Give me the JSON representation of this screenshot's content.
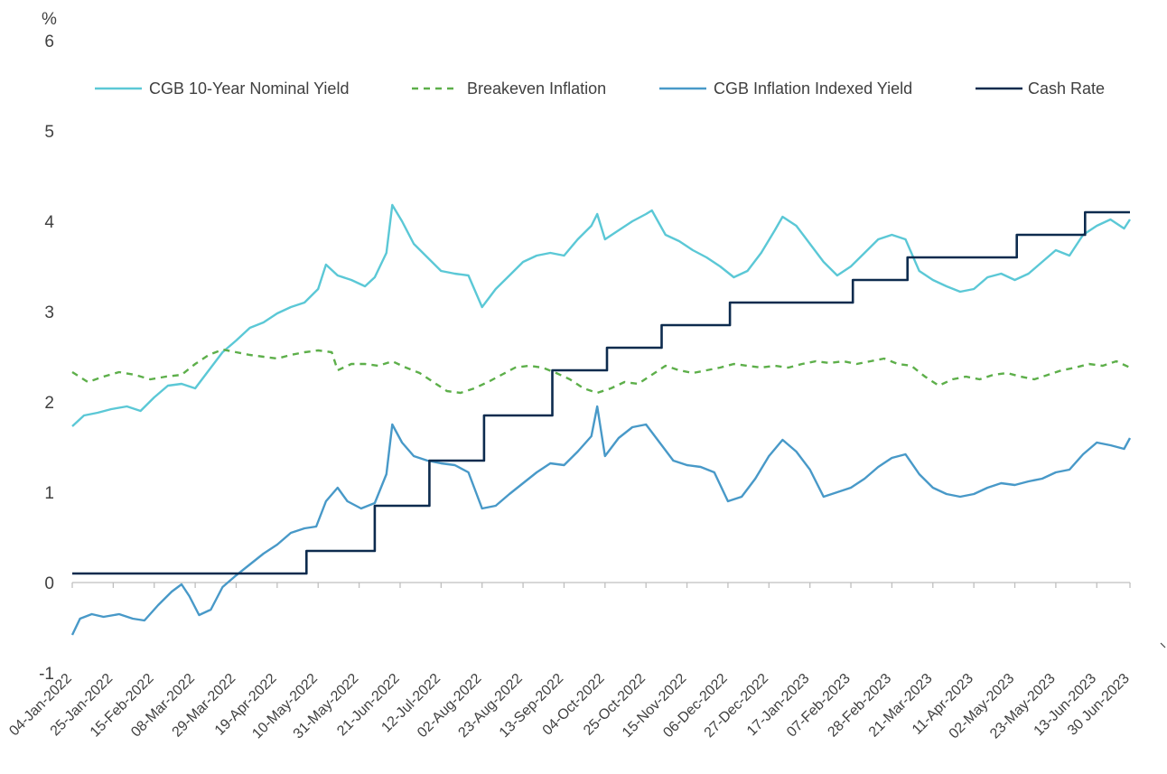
{
  "chart_data": {
    "type": "line",
    "ylabel": "%",
    "ylim": [
      -1,
      6
    ],
    "yticks": [
      "-1",
      "0",
      "1",
      "2",
      "3",
      "4",
      "5",
      "6"
    ],
    "xlim": [
      "2022-01-04",
      "2023-06-30"
    ],
    "grid": false,
    "legend_position": "top",
    "xtick_labels": [
      "04-Jan-2022",
      "25-Jan-2022",
      "15-Feb-2022",
      "08-Mar-2022",
      "29-Mar-2022",
      "19-Apr-2022",
      "10-May-2022",
      "31-May-2022",
      "21-Jun-2022",
      "12-Jul-2022",
      "02-Aug-2022",
      "23-Aug-2022",
      "13-Sep-2022",
      "04-Oct-2022",
      "25-Oct-2022",
      "15-Nov-2022",
      "06-Dec-2022",
      "27-Dec-2022",
      "17-Jan-2023",
      "07-Feb-2023",
      "28-Feb-2023",
      "21-Mar-2023",
      "11-Apr-2023",
      "02-May-2023",
      "23-May-2023",
      "13-Jun-2023",
      "30 Jun-2023"
    ],
    "xtick_dates": [
      "2022-01-04",
      "2022-01-25",
      "2022-02-15",
      "2022-03-08",
      "2022-03-29",
      "2022-04-19",
      "2022-05-10",
      "2022-05-31",
      "2022-06-21",
      "2022-07-12",
      "2022-08-02",
      "2022-08-23",
      "2022-09-13",
      "2022-10-04",
      "2022-10-25",
      "2022-11-15",
      "2022-12-06",
      "2022-12-27",
      "2023-01-17",
      "2023-02-07",
      "2023-02-28",
      "2023-03-21",
      "2023-04-11",
      "2023-05-02",
      "2023-05-23",
      "2023-06-13",
      "2023-06-30"
    ],
    "series": [
      {
        "name": "CGB 10-Year Nominal Yield",
        "color": "#5BC8D6",
        "style": "solid",
        "points": [
          [
            "2022-01-04",
            1.73
          ],
          [
            "2022-01-10",
            1.85
          ],
          [
            "2022-01-17",
            1.88
          ],
          [
            "2022-01-24",
            1.92
          ],
          [
            "2022-02-01",
            1.95
          ],
          [
            "2022-02-08",
            1.9
          ],
          [
            "2022-02-15",
            2.05
          ],
          [
            "2022-02-22",
            2.18
          ],
          [
            "2022-03-01",
            2.2
          ],
          [
            "2022-03-08",
            2.15
          ],
          [
            "2022-03-15",
            2.35
          ],
          [
            "2022-03-22",
            2.55
          ],
          [
            "2022-03-29",
            2.68
          ],
          [
            "2022-04-05",
            2.82
          ],
          [
            "2022-04-12",
            2.88
          ],
          [
            "2022-04-19",
            2.98
          ],
          [
            "2022-04-26",
            3.05
          ],
          [
            "2022-05-03",
            3.1
          ],
          [
            "2022-05-10",
            3.25
          ],
          [
            "2022-05-14",
            3.52
          ],
          [
            "2022-05-20",
            3.4
          ],
          [
            "2022-05-27",
            3.35
          ],
          [
            "2022-06-03",
            3.28
          ],
          [
            "2022-06-08",
            3.38
          ],
          [
            "2022-06-14",
            3.65
          ],
          [
            "2022-06-17",
            4.18
          ],
          [
            "2022-06-22",
            4.0
          ],
          [
            "2022-06-28",
            3.75
          ],
          [
            "2022-07-05",
            3.6
          ],
          [
            "2022-07-12",
            3.45
          ],
          [
            "2022-07-19",
            3.42
          ],
          [
            "2022-07-26",
            3.4
          ],
          [
            "2022-08-02",
            3.05
          ],
          [
            "2022-08-09",
            3.25
          ],
          [
            "2022-08-16",
            3.4
          ],
          [
            "2022-08-23",
            3.55
          ],
          [
            "2022-08-30",
            3.62
          ],
          [
            "2022-09-06",
            3.65
          ],
          [
            "2022-09-13",
            3.62
          ],
          [
            "2022-09-20",
            3.8
          ],
          [
            "2022-09-27",
            3.95
          ],
          [
            "2022-09-30",
            4.08
          ],
          [
            "2022-10-04",
            3.8
          ],
          [
            "2022-10-11",
            3.9
          ],
          [
            "2022-10-18",
            4.0
          ],
          [
            "2022-10-25",
            4.08
          ],
          [
            "2022-10-28",
            4.12
          ],
          [
            "2022-11-04",
            3.85
          ],
          [
            "2022-11-11",
            3.78
          ],
          [
            "2022-11-18",
            3.68
          ],
          [
            "2022-11-25",
            3.6
          ],
          [
            "2022-12-02",
            3.5
          ],
          [
            "2022-12-09",
            3.38
          ],
          [
            "2022-12-16",
            3.45
          ],
          [
            "2022-12-23",
            3.65
          ],
          [
            "2022-12-30",
            3.9
          ],
          [
            "2023-01-03",
            4.05
          ],
          [
            "2023-01-10",
            3.95
          ],
          [
            "2023-01-17",
            3.75
          ],
          [
            "2023-01-24",
            3.55
          ],
          [
            "2023-01-31",
            3.4
          ],
          [
            "2023-02-07",
            3.5
          ],
          [
            "2023-02-14",
            3.65
          ],
          [
            "2023-02-21",
            3.8
          ],
          [
            "2023-02-28",
            3.85
          ],
          [
            "2023-03-07",
            3.8
          ],
          [
            "2023-03-14",
            3.45
          ],
          [
            "2023-03-21",
            3.35
          ],
          [
            "2023-03-28",
            3.28
          ],
          [
            "2023-04-04",
            3.22
          ],
          [
            "2023-04-11",
            3.25
          ],
          [
            "2023-04-18",
            3.38
          ],
          [
            "2023-04-25",
            3.42
          ],
          [
            "2023-05-02",
            3.35
          ],
          [
            "2023-05-09",
            3.42
          ],
          [
            "2023-05-16",
            3.55
          ],
          [
            "2023-05-23",
            3.68
          ],
          [
            "2023-05-30",
            3.62
          ],
          [
            "2023-06-06",
            3.85
          ],
          [
            "2023-06-13",
            3.95
          ],
          [
            "2023-06-20",
            4.02
          ],
          [
            "2023-06-27",
            3.92
          ],
          [
            "2023-06-30",
            4.02
          ]
        ]
      },
      {
        "name": "Breakeven Inflation",
        "color": "#5DAF4A",
        "style": "dashed",
        "points": [
          [
            "2022-01-04",
            2.33
          ],
          [
            "2022-01-12",
            2.22
          ],
          [
            "2022-01-20",
            2.28
          ],
          [
            "2022-01-28",
            2.33
          ],
          [
            "2022-02-05",
            2.3
          ],
          [
            "2022-02-13",
            2.25
          ],
          [
            "2022-02-21",
            2.28
          ],
          [
            "2022-03-01",
            2.3
          ],
          [
            "2022-03-08",
            2.42
          ],
          [
            "2022-03-15",
            2.52
          ],
          [
            "2022-03-22",
            2.58
          ],
          [
            "2022-03-29",
            2.55
          ],
          [
            "2022-04-05",
            2.52
          ],
          [
            "2022-04-12",
            2.5
          ],
          [
            "2022-04-19",
            2.48
          ],
          [
            "2022-04-26",
            2.52
          ],
          [
            "2022-05-03",
            2.55
          ],
          [
            "2022-05-10",
            2.57
          ],
          [
            "2022-05-17",
            2.55
          ],
          [
            "2022-05-20",
            2.35
          ],
          [
            "2022-05-27",
            2.42
          ],
          [
            "2022-06-03",
            2.42
          ],
          [
            "2022-06-10",
            2.4
          ],
          [
            "2022-06-17",
            2.45
          ],
          [
            "2022-06-24",
            2.38
          ],
          [
            "2022-07-01",
            2.32
          ],
          [
            "2022-07-08",
            2.22
          ],
          [
            "2022-07-15",
            2.12
          ],
          [
            "2022-07-22",
            2.1
          ],
          [
            "2022-07-29",
            2.15
          ],
          [
            "2022-08-05",
            2.22
          ],
          [
            "2022-08-12",
            2.3
          ],
          [
            "2022-08-19",
            2.38
          ],
          [
            "2022-08-26",
            2.4
          ],
          [
            "2022-09-02",
            2.38
          ],
          [
            "2022-09-09",
            2.32
          ],
          [
            "2022-09-16",
            2.25
          ],
          [
            "2022-09-23",
            2.15
          ],
          [
            "2022-09-30",
            2.1
          ],
          [
            "2022-10-07",
            2.15
          ],
          [
            "2022-10-14",
            2.22
          ],
          [
            "2022-10-21",
            2.2
          ],
          [
            "2022-10-28",
            2.3
          ],
          [
            "2022-11-04",
            2.4
          ],
          [
            "2022-11-11",
            2.35
          ],
          [
            "2022-11-18",
            2.32
          ],
          [
            "2022-11-25",
            2.35
          ],
          [
            "2022-12-02",
            2.38
          ],
          [
            "2022-12-09",
            2.42
          ],
          [
            "2022-12-16",
            2.4
          ],
          [
            "2022-12-23",
            2.38
          ],
          [
            "2022-12-30",
            2.4
          ],
          [
            "2023-01-06",
            2.38
          ],
          [
            "2023-01-13",
            2.42
          ],
          [
            "2023-01-20",
            2.45
          ],
          [
            "2023-01-27",
            2.43
          ],
          [
            "2023-02-03",
            2.45
          ],
          [
            "2023-02-10",
            2.42
          ],
          [
            "2023-02-17",
            2.45
          ],
          [
            "2023-02-24",
            2.48
          ],
          [
            "2023-03-03",
            2.42
          ],
          [
            "2023-03-10",
            2.4
          ],
          [
            "2023-03-17",
            2.28
          ],
          [
            "2023-03-24",
            2.18
          ],
          [
            "2023-03-31",
            2.25
          ],
          [
            "2023-04-07",
            2.28
          ],
          [
            "2023-04-14",
            2.25
          ],
          [
            "2023-04-21",
            2.3
          ],
          [
            "2023-04-28",
            2.32
          ],
          [
            "2023-05-05",
            2.28
          ],
          [
            "2023-05-12",
            2.25
          ],
          [
            "2023-05-19",
            2.3
          ],
          [
            "2023-05-26",
            2.35
          ],
          [
            "2023-06-02",
            2.38
          ],
          [
            "2023-06-09",
            2.42
          ],
          [
            "2023-06-16",
            2.4
          ],
          [
            "2023-06-23",
            2.45
          ],
          [
            "2023-06-30",
            2.38
          ]
        ]
      },
      {
        "name": "CGB Inflation Indexed Yield",
        "color": "#4899C8",
        "style": "solid",
        "points": [
          [
            "2022-01-04",
            -0.58
          ],
          [
            "2022-01-08",
            -0.4
          ],
          [
            "2022-01-14",
            -0.35
          ],
          [
            "2022-01-20",
            -0.38
          ],
          [
            "2022-01-28",
            -0.35
          ],
          [
            "2022-02-04",
            -0.4
          ],
          [
            "2022-02-10",
            -0.42
          ],
          [
            "2022-02-17",
            -0.25
          ],
          [
            "2022-02-24",
            -0.1
          ],
          [
            "2022-03-01",
            -0.02
          ],
          [
            "2022-03-05",
            -0.15
          ],
          [
            "2022-03-10",
            -0.36
          ],
          [
            "2022-03-16",
            -0.3
          ],
          [
            "2022-03-22",
            -0.05
          ],
          [
            "2022-03-29",
            0.08
          ],
          [
            "2022-04-05",
            0.2
          ],
          [
            "2022-04-12",
            0.32
          ],
          [
            "2022-04-19",
            0.42
          ],
          [
            "2022-04-26",
            0.55
          ],
          [
            "2022-05-03",
            0.6
          ],
          [
            "2022-05-09",
            0.62
          ],
          [
            "2022-05-14",
            0.9
          ],
          [
            "2022-05-20",
            1.05
          ],
          [
            "2022-05-25",
            0.9
          ],
          [
            "2022-06-01",
            0.82
          ],
          [
            "2022-06-08",
            0.88
          ],
          [
            "2022-06-14",
            1.2
          ],
          [
            "2022-06-17",
            1.75
          ],
          [
            "2022-06-22",
            1.55
          ],
          [
            "2022-06-28",
            1.4
          ],
          [
            "2022-07-05",
            1.35
          ],
          [
            "2022-07-12",
            1.32
          ],
          [
            "2022-07-19",
            1.3
          ],
          [
            "2022-07-26",
            1.22
          ],
          [
            "2022-08-02",
            0.82
          ],
          [
            "2022-08-09",
            0.85
          ],
          [
            "2022-08-16",
            0.98
          ],
          [
            "2022-08-23",
            1.1
          ],
          [
            "2022-08-30",
            1.22
          ],
          [
            "2022-09-06",
            1.32
          ],
          [
            "2022-09-13",
            1.3
          ],
          [
            "2022-09-20",
            1.45
          ],
          [
            "2022-09-27",
            1.62
          ],
          [
            "2022-09-30",
            1.95
          ],
          [
            "2022-10-04",
            1.4
          ],
          [
            "2022-10-11",
            1.6
          ],
          [
            "2022-10-18",
            1.72
          ],
          [
            "2022-10-25",
            1.75
          ],
          [
            "2022-11-01",
            1.55
          ],
          [
            "2022-11-08",
            1.35
          ],
          [
            "2022-11-15",
            1.3
          ],
          [
            "2022-11-22",
            1.28
          ],
          [
            "2022-11-29",
            1.22
          ],
          [
            "2022-12-06",
            0.9
          ],
          [
            "2022-12-13",
            0.95
          ],
          [
            "2022-12-20",
            1.15
          ],
          [
            "2022-12-27",
            1.4
          ],
          [
            "2023-01-03",
            1.58
          ],
          [
            "2023-01-10",
            1.45
          ],
          [
            "2023-01-17",
            1.25
          ],
          [
            "2023-01-24",
            0.95
          ],
          [
            "2023-01-31",
            1.0
          ],
          [
            "2023-02-07",
            1.05
          ],
          [
            "2023-02-14",
            1.15
          ],
          [
            "2023-02-21",
            1.28
          ],
          [
            "2023-02-28",
            1.38
          ],
          [
            "2023-03-07",
            1.42
          ],
          [
            "2023-03-14",
            1.2
          ],
          [
            "2023-03-21",
            1.05
          ],
          [
            "2023-03-28",
            0.98
          ],
          [
            "2023-04-04",
            0.95
          ],
          [
            "2023-04-11",
            0.98
          ],
          [
            "2023-04-18",
            1.05
          ],
          [
            "2023-04-25",
            1.1
          ],
          [
            "2023-05-02",
            1.08
          ],
          [
            "2023-05-09",
            1.12
          ],
          [
            "2023-05-16",
            1.15
          ],
          [
            "2023-05-23",
            1.22
          ],
          [
            "2023-05-30",
            1.25
          ],
          [
            "2023-06-06",
            1.42
          ],
          [
            "2023-06-13",
            1.55
          ],
          [
            "2023-06-20",
            1.52
          ],
          [
            "2023-06-27",
            1.48
          ],
          [
            "2023-06-30",
            1.6
          ]
        ]
      },
      {
        "name": "Cash Rate",
        "color": "#0D2B4E",
        "style": "step",
        "points": [
          [
            "2022-01-04",
            0.1
          ],
          [
            "2022-05-04",
            0.35
          ],
          [
            "2022-06-08",
            0.85
          ],
          [
            "2022-07-06",
            1.35
          ],
          [
            "2022-08-03",
            1.85
          ],
          [
            "2022-09-07",
            2.35
          ],
          [
            "2022-10-05",
            2.6
          ],
          [
            "2022-11-02",
            2.85
          ],
          [
            "2022-12-07",
            3.1
          ],
          [
            "2023-02-08",
            3.35
          ],
          [
            "2023-03-08",
            3.6
          ],
          [
            "2023-05-03",
            3.85
          ],
          [
            "2023-06-07",
            4.1
          ],
          [
            "2023-06-30",
            4.1
          ]
        ]
      }
    ]
  }
}
